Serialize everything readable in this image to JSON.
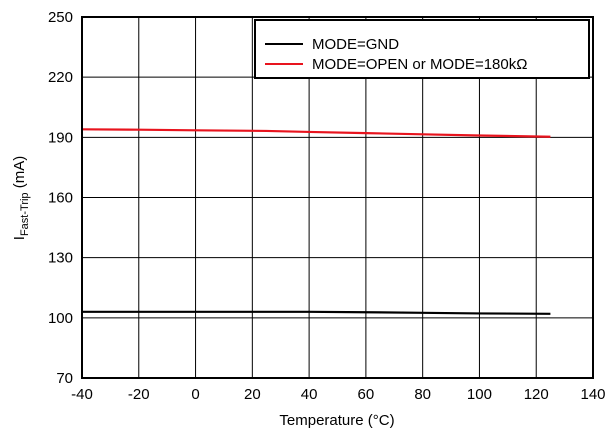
{
  "chart_data": {
    "type": "line",
    "xlabel": "Temperature (°C)",
    "ylabel_main": "I",
    "ylabel_sub": "Fast-Trip",
    "ylabel_unit": " (mA)",
    "xlim": [
      -40,
      140
    ],
    "ylim": [
      70,
      250
    ],
    "xticks": [
      -40,
      -20,
      0,
      20,
      40,
      60,
      80,
      100,
      120,
      140
    ],
    "yticks": [
      70,
      100,
      130,
      160,
      190,
      220,
      250
    ],
    "grid": true,
    "legend_position": "top-right",
    "series": [
      {
        "name": "MODE=GND",
        "color": "#000000",
        "x": [
          -40,
          -20,
          0,
          20,
          40,
          60,
          80,
          100,
          125
        ],
        "y": [
          103,
          103,
          103,
          103,
          103,
          102.8,
          102.5,
          102.2,
          102
        ]
      },
      {
        "name": "MODE=OPEN or MODE=180kΩ",
        "color": "#e8141e",
        "x": [
          -40,
          -20,
          0,
          25,
          40,
          60,
          80,
          100,
          125
        ],
        "y": [
          194,
          193.8,
          193.5,
          193.2,
          192.7,
          192.1,
          191.5,
          190.9,
          190.3
        ]
      }
    ]
  }
}
